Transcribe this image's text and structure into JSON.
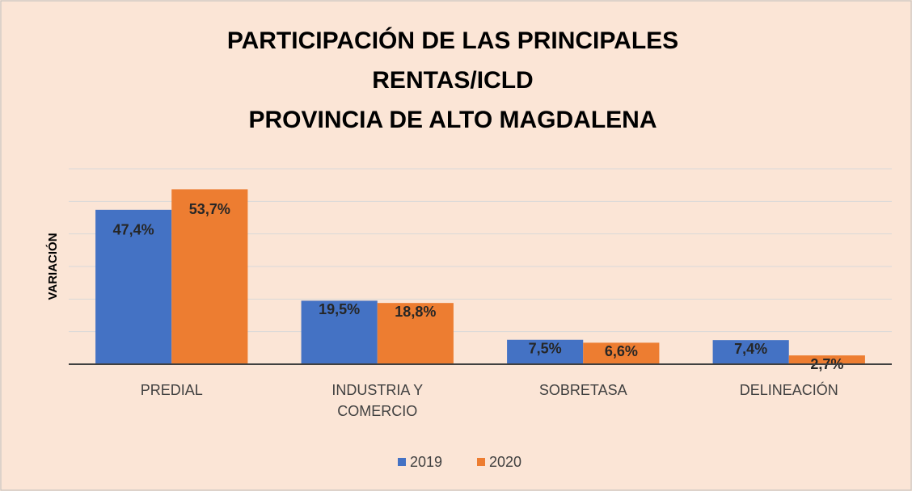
{
  "chart_data": {
    "type": "bar",
    "title": [
      "PARTICIPACIÓN DE LAS PRINCIPALES",
      "RENTAS/ICLD",
      "PROVINCIA DE ALTO MAGDALENA"
    ],
    "y_label": "VARIACIÓN",
    "categories": [
      "PREDIAL",
      "INDUSTRIA Y COMERCIO",
      "SOBRETASA",
      "DELINEACIÓN"
    ],
    "series": [
      {
        "name": "2019",
        "color": "#4472c4",
        "values": [
          47.4,
          19.5,
          7.5,
          7.4
        ],
        "value_labels": [
          "47,4%",
          "19,5%",
          "7,5%",
          "7,4%"
        ]
      },
      {
        "name": "2020",
        "color": "#ed7d31",
        "values": [
          53.7,
          18.8,
          6.6,
          2.7
        ],
        "value_labels": [
          "53,7%",
          "18,8%",
          "6,6%",
          "2,7%"
        ]
      }
    ],
    "ylim": [
      0,
      60
    ],
    "yticks": [
      0,
      10,
      20,
      30,
      40,
      50,
      60
    ],
    "grid": true,
    "legend": "bottom"
  }
}
